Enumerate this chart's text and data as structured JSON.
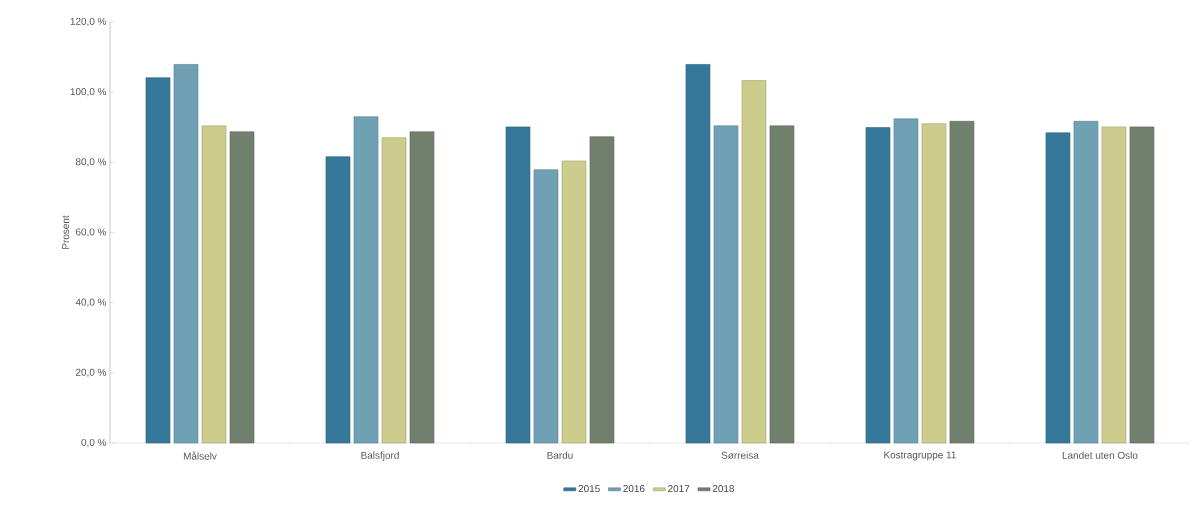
{
  "chart_data": {
    "type": "bar",
    "ylabel": "Prosent",
    "categories": [
      "Målselv",
      "Balsfjord",
      "Bardu",
      "Sørreisa",
      "Kostragruppe 11",
      "Landet uten Oslo"
    ],
    "series": [
      {
        "name": "2015",
        "color": "#36789a",
        "values": [
          104.1,
          81.6,
          90.1,
          107.9,
          89.9,
          88.4
        ]
      },
      {
        "name": "2016",
        "color": "#6fa0b4",
        "values": [
          107.9,
          93.0,
          77.9,
          90.4,
          92.4,
          91.7
        ]
      },
      {
        "name": "2017",
        "color": "#cccc8c",
        "values": [
          90.4,
          87.0,
          80.4,
          103.3,
          91.0,
          90.1
        ]
      },
      {
        "name": "2018",
        "color": "#71806d",
        "values": [
          88.7,
          88.7,
          87.3,
          90.4,
          91.7,
          90.1
        ]
      }
    ],
    "ylim": [
      0,
      120
    ],
    "yticks": [
      {
        "value": 0,
        "label": "0,0 %"
      },
      {
        "value": 20,
        "label": "20,0 %"
      },
      {
        "value": 40,
        "label": "40,0 %"
      },
      {
        "value": 60,
        "label": "60,0 %"
      },
      {
        "value": 80,
        "label": "80,0 %"
      },
      {
        "value": 100,
        "label": "100,0 %"
      },
      {
        "value": 120,
        "label": "120,0 %"
      }
    ],
    "grid": false,
    "legend": "bottom"
  }
}
